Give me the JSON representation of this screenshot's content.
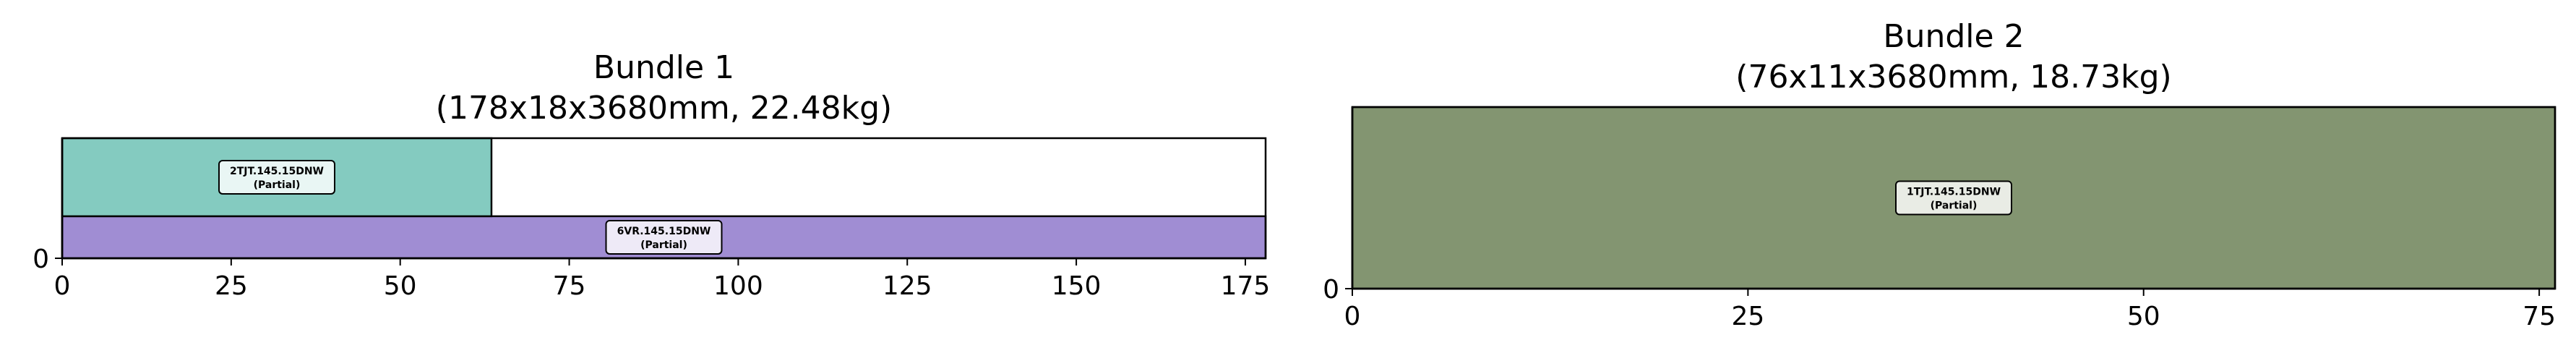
{
  "chart_data": [
    {
      "type": "bar",
      "orientation": "horizontal-stacked-layers",
      "title": "Bundle 1",
      "subtitle": "(178x18x3680mm, 22.48kg)",
      "xlim": [
        0,
        178
      ],
      "ylim": [
        0,
        18
      ],
      "xticks": [
        "0",
        "25",
        "50",
        "75",
        "100",
        "125",
        "150",
        "175"
      ],
      "yticks": [
        "0"
      ],
      "frame": [
        0,
        0,
        178,
        18
      ],
      "rects": [
        {
          "x": 0,
          "width": 178,
          "y": 0,
          "height": 6.3,
          "color": "#a08dd3",
          "label_line1": "6VR.145.15DNW",
          "label_line2": "(Partial)"
        },
        {
          "x": 0,
          "width": 63.5,
          "y": 6.3,
          "height": 11.7,
          "color": "#84cbc0",
          "label_line1": "2TJT.145.15DNW",
          "label_line2": "(Partial)"
        }
      ]
    },
    {
      "type": "bar",
      "orientation": "horizontal-stacked-layers",
      "title": "Bundle 2",
      "subtitle": "(76x11x3680mm, 18.73kg)",
      "xlim": [
        0,
        76
      ],
      "ylim": [
        0,
        11
      ],
      "xticks": [
        "0",
        "25",
        "50",
        "75"
      ],
      "yticks": [
        "0"
      ],
      "frame": [
        0,
        0,
        76,
        11
      ],
      "rects": [
        {
          "x": 0,
          "width": 76,
          "y": 0,
          "height": 11,
          "color": "#839571",
          "label_line1": "1TJT.145.15DNW",
          "label_line2": "(Partial)"
        }
      ]
    }
  ]
}
